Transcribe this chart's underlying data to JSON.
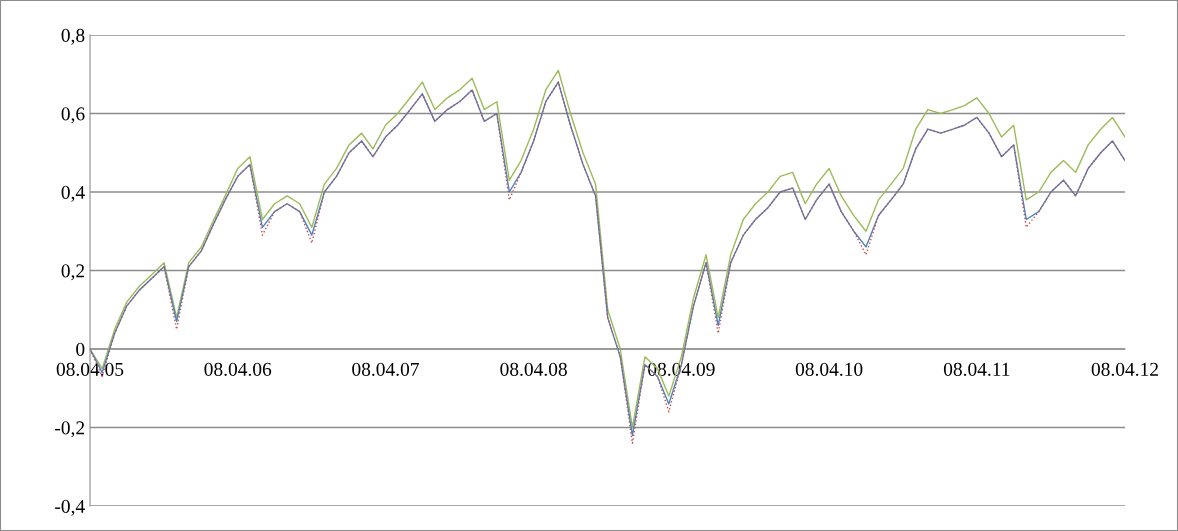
{
  "chart_data": {
    "type": "line",
    "x": [
      "2005-04-08",
      "2005-05-08",
      "2005-06-08",
      "2005-07-08",
      "2005-08-08",
      "2005-09-08",
      "2005-10-08",
      "2005-11-08",
      "2005-12-08",
      "2006-01-08",
      "2006-02-08",
      "2006-03-08",
      "2006-04-08",
      "2006-05-08",
      "2006-06-08",
      "2006-07-08",
      "2006-08-08",
      "2006-09-08",
      "2006-10-08",
      "2006-11-08",
      "2006-12-08",
      "2007-01-08",
      "2007-02-08",
      "2007-03-08",
      "2007-04-08",
      "2007-05-08",
      "2007-06-08",
      "2007-07-08",
      "2007-08-08",
      "2007-09-08",
      "2007-10-08",
      "2007-11-08",
      "2007-12-08",
      "2008-01-08",
      "2008-02-08",
      "2008-03-08",
      "2008-04-08",
      "2008-05-08",
      "2008-06-08",
      "2008-07-08",
      "2008-08-08",
      "2008-09-08",
      "2008-10-08",
      "2008-11-08",
      "2008-12-08",
      "2009-01-08",
      "2009-02-08",
      "2009-03-08",
      "2009-04-08",
      "2009-05-08",
      "2009-06-08",
      "2009-07-08",
      "2009-08-08",
      "2009-09-08",
      "2009-10-08",
      "2009-11-08",
      "2009-12-08",
      "2010-01-08",
      "2010-02-08",
      "2010-03-08",
      "2010-04-08",
      "2010-05-08",
      "2010-06-08",
      "2010-07-08",
      "2010-08-08",
      "2010-09-08",
      "2010-10-08",
      "2010-11-08",
      "2010-12-08",
      "2011-01-08",
      "2011-02-08",
      "2011-03-08",
      "2011-04-08",
      "2011-05-08",
      "2011-06-08",
      "2011-07-08",
      "2011-08-08",
      "2011-09-08",
      "2011-10-08",
      "2011-11-08",
      "2011-12-08",
      "2012-01-08",
      "2012-02-08",
      "2012-03-08",
      "2012-04-08"
    ],
    "series": [
      {
        "color": "#9bbb59",
        "line_style": "solid",
        "values": [
          0.0,
          -0.05,
          0.05,
          0.12,
          0.16,
          0.19,
          0.22,
          0.08,
          0.22,
          0.26,
          0.33,
          0.39,
          0.46,
          0.49,
          0.33,
          0.37,
          0.39,
          0.37,
          0.31,
          0.42,
          0.46,
          0.52,
          0.55,
          0.51,
          0.57,
          0.6,
          0.64,
          0.68,
          0.61,
          0.64,
          0.66,
          0.69,
          0.61,
          0.63,
          0.43,
          0.48,
          0.56,
          0.66,
          0.71,
          0.6,
          0.5,
          0.42,
          0.1,
          0.0,
          -0.2,
          -0.02,
          -0.05,
          -0.12,
          -0.02,
          0.13,
          0.24,
          0.08,
          0.24,
          0.33,
          0.37,
          0.4,
          0.44,
          0.45,
          0.37,
          0.42,
          0.46,
          0.39,
          0.34,
          0.3,
          0.38,
          0.42,
          0.46,
          0.56,
          0.61,
          0.6,
          0.61,
          0.62,
          0.64,
          0.6,
          0.54,
          0.57,
          0.38,
          0.4,
          0.45,
          0.48,
          0.45,
          0.52,
          0.56,
          0.59,
          0.54
        ]
      },
      {
        "color": "#4f81bd",
        "line_style": "solid",
        "values": [
          0.0,
          -0.06,
          0.04,
          0.11,
          0.15,
          0.18,
          0.21,
          0.07,
          0.21,
          0.25,
          0.32,
          0.38,
          0.44,
          0.47,
          0.31,
          0.35,
          0.37,
          0.35,
          0.29,
          0.4,
          0.44,
          0.5,
          0.53,
          0.49,
          0.54,
          0.57,
          0.61,
          0.65,
          0.58,
          0.61,
          0.63,
          0.66,
          0.58,
          0.6,
          0.4,
          0.45,
          0.53,
          0.63,
          0.68,
          0.57,
          0.47,
          0.39,
          0.08,
          -0.02,
          -0.22,
          -0.04,
          -0.07,
          -0.14,
          -0.04,
          0.11,
          0.22,
          0.06,
          0.22,
          0.29,
          0.33,
          0.36,
          0.4,
          0.41,
          0.33,
          0.38,
          0.42,
          0.35,
          0.3,
          0.26,
          0.34,
          0.38,
          0.42,
          0.51,
          0.56,
          0.55,
          0.56,
          0.57,
          0.59,
          0.55,
          0.49,
          0.52,
          0.33,
          0.35,
          0.4,
          0.43,
          0.39,
          0.46,
          0.5,
          0.53,
          0.48
        ]
      },
      {
        "color": "#c0504d",
        "line_style": "dotted",
        "values": [
          0.0,
          -0.07,
          0.04,
          0.11,
          0.15,
          0.18,
          0.21,
          0.05,
          0.21,
          0.25,
          0.32,
          0.38,
          0.44,
          0.47,
          0.29,
          0.35,
          0.37,
          0.35,
          0.27,
          0.4,
          0.44,
          0.5,
          0.53,
          0.49,
          0.54,
          0.57,
          0.61,
          0.65,
          0.58,
          0.61,
          0.63,
          0.66,
          0.58,
          0.6,
          0.38,
          0.45,
          0.53,
          0.63,
          0.68,
          0.57,
          0.47,
          0.39,
          0.08,
          -0.02,
          -0.24,
          -0.04,
          -0.07,
          -0.16,
          -0.04,
          0.11,
          0.22,
          0.04,
          0.22,
          0.29,
          0.33,
          0.36,
          0.4,
          0.41,
          0.33,
          0.38,
          0.42,
          0.35,
          0.3,
          0.24,
          0.34,
          0.38,
          0.42,
          0.51,
          0.56,
          0.55,
          0.56,
          0.57,
          0.59,
          0.55,
          0.49,
          0.52,
          0.31,
          0.35,
          0.4,
          0.43,
          0.39,
          0.46,
          0.5,
          0.53,
          0.48
        ]
      }
    ],
    "xlim": [
      "2005-04-08",
      "2012-04-08"
    ],
    "xticks": [
      {
        "value": "2005-04-08",
        "label": "08.04.05"
      },
      {
        "value": "2006-04-08",
        "label": "08.04.06"
      },
      {
        "value": "2007-04-08",
        "label": "08.04.07"
      },
      {
        "value": "2008-04-08",
        "label": "08.04.08"
      },
      {
        "value": "2009-04-08",
        "label": "08.04.09"
      },
      {
        "value": "2010-04-08",
        "label": "08.04.10"
      },
      {
        "value": "2011-04-08",
        "label": "08.04.11"
      },
      {
        "value": "2012-04-08",
        "label": "08.04.12"
      }
    ],
    "ylim": [
      -0.4,
      0.8
    ],
    "yticks": [
      {
        "value": -0.4,
        "label": "-0,4"
      },
      {
        "value": -0.2,
        "label": "-0,2"
      },
      {
        "value": 0,
        "label": "0"
      },
      {
        "value": 0.2,
        "label": "0,2"
      },
      {
        "value": 0.4,
        "label": "0,4"
      },
      {
        "value": 0.6,
        "label": "0,6"
      },
      {
        "value": 0.8,
        "label": "0,8"
      }
    ],
    "grid": "y",
    "marker": "none",
    "legend": false
  }
}
